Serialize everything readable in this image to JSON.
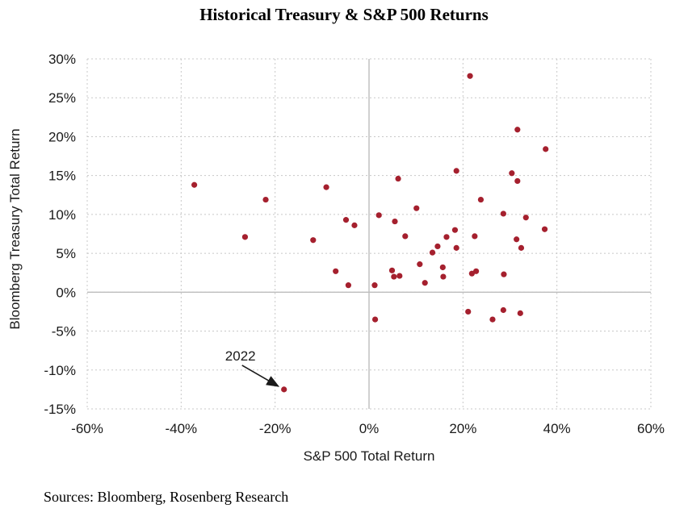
{
  "title": "Historical Treasury & S&P 500 Returns",
  "source": "Sources: Bloomberg, Rosenberg Research",
  "chart_data": {
    "type": "scatter",
    "title": "Historical Treasury & S&P 500 Returns",
    "xlabel": "S&P 500 Total Return",
    "ylabel": "Bloomberg Treasury Total Return",
    "xlim": [
      -0.6,
      0.6
    ],
    "ylim": [
      -0.15,
      0.3
    ],
    "x_ticks": [
      -0.6,
      -0.4,
      -0.2,
      0,
      0.2,
      0.4,
      0.6
    ],
    "x_tick_labels": [
      "-60%",
      "-40%",
      "-20%",
      "0%",
      "20%",
      "40%",
      "60%"
    ],
    "y_ticks": [
      -0.15,
      -0.1,
      -0.05,
      0,
      0.05,
      0.1,
      0.15,
      0.2,
      0.25,
      0.3
    ],
    "y_tick_labels": [
      "-15%",
      "-10%",
      "-5%",
      "0%",
      "5%",
      "10%",
      "15%",
      "20%",
      "25%",
      "30%"
    ],
    "grid": true,
    "point_color": "#a5202e",
    "annotation": {
      "text": "2022",
      "x": -0.181,
      "y": -0.125
    },
    "points": [
      {
        "x": -0.372,
        "y": 0.138
      },
      {
        "x": -0.264,
        "y": 0.071
      },
      {
        "x": -0.22,
        "y": 0.119
      },
      {
        "x": -0.119,
        "y": 0.067
      },
      {
        "x": -0.091,
        "y": 0.135
      },
      {
        "x": -0.071,
        "y": 0.027
      },
      {
        "x": -0.049,
        "y": 0.093
      },
      {
        "x": -0.044,
        "y": 0.009
      },
      {
        "x": -0.031,
        "y": 0.086
      },
      {
        "x": 0.012,
        "y": 0.009
      },
      {
        "x": 0.013,
        "y": -0.035
      },
      {
        "x": 0.021,
        "y": 0.099
      },
      {
        "x": 0.049,
        "y": 0.028
      },
      {
        "x": 0.053,
        "y": 0.02
      },
      {
        "x": 0.055,
        "y": 0.091
      },
      {
        "x": 0.062,
        "y": 0.146
      },
      {
        "x": 0.065,
        "y": 0.021
      },
      {
        "x": 0.077,
        "y": 0.072
      },
      {
        "x": 0.101,
        "y": 0.108
      },
      {
        "x": 0.108,
        "y": 0.036
      },
      {
        "x": 0.119,
        "y": 0.012
      },
      {
        "x": 0.135,
        "y": 0.051
      },
      {
        "x": 0.146,
        "y": 0.059
      },
      {
        "x": 0.157,
        "y": 0.032
      },
      {
        "x": 0.158,
        "y": 0.02
      },
      {
        "x": 0.165,
        "y": 0.071
      },
      {
        "x": 0.183,
        "y": 0.08
      },
      {
        "x": 0.186,
        "y": 0.156
      },
      {
        "x": 0.186,
        "y": 0.057
      },
      {
        "x": 0.211,
        "y": -0.025
      },
      {
        "x": 0.215,
        "y": 0.278
      },
      {
        "x": 0.219,
        "y": 0.024
      },
      {
        "x": 0.225,
        "y": 0.072
      },
      {
        "x": 0.228,
        "y": 0.027
      },
      {
        "x": 0.238,
        "y": 0.119
      },
      {
        "x": 0.263,
        "y": -0.035
      },
      {
        "x": 0.286,
        "y": -0.023
      },
      {
        "x": 0.286,
        "y": 0.101
      },
      {
        "x": 0.287,
        "y": 0.023
      },
      {
        "x": 0.304,
        "y": 0.153
      },
      {
        "x": 0.314,
        "y": 0.068
      },
      {
        "x": 0.316,
        "y": 0.209
      },
      {
        "x": 0.316,
        "y": 0.143
      },
      {
        "x": 0.322,
        "y": -0.027
      },
      {
        "x": 0.324,
        "y": 0.057
      },
      {
        "x": 0.334,
        "y": 0.096
      },
      {
        "x": 0.374,
        "y": 0.081
      },
      {
        "x": 0.376,
        "y": 0.184
      },
      {
        "x": -0.181,
        "y": -0.125
      }
    ]
  }
}
